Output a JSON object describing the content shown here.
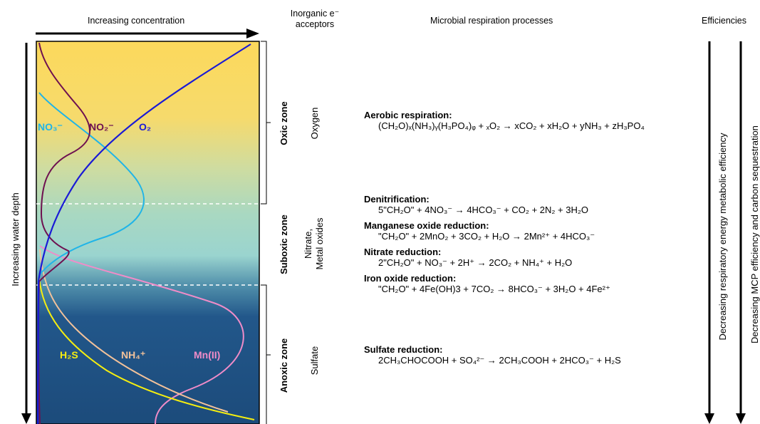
{
  "headers": {
    "concentration": "Increasing concentration",
    "acceptors": "Inorganic e⁻ acceptors",
    "processes": "Microbial respiration processes",
    "efficiencies": "Efficiencies"
  },
  "axis": {
    "depth": "Increasing water depth"
  },
  "zones": [
    {
      "name": "Oxic zone",
      "acceptor": "Oxygen"
    },
    {
      "name": "Suboxic zone",
      "acceptor": "Nitrate,\nMetal oxides"
    },
    {
      "name": "Anoxic zone",
      "acceptor": "Sulfate"
    }
  ],
  "species": {
    "no3": "NO₃⁻",
    "no2": "NO₂⁻",
    "o2": "O₂",
    "h2s": "H₂S",
    "nh4": "NH₄⁺",
    "mn": "Mn(II)"
  },
  "processes": [
    {
      "title": "Aerobic respiration:",
      "equation": "(CH₂O)ₓ(NH₃)ᵧ(H₃PO₄)ᵩ + ₓO₂ → xCO₂ + xH₂O + yNH₃ + zH₃PO₄"
    },
    {
      "title": "Denitrification:",
      "equation": "5\"CH₂O\" + 4NO₃⁻ → 4HCO₃⁻ + CO₂ + 2N₂ + 3H₂O"
    },
    {
      "title": "Manganese oxide reduction:",
      "equation": "\"CH₂O\" + 2MnO₂ + 3CO₂ + H₂O → 2Mn²⁺ + 4HCO₃⁻"
    },
    {
      "title": "Nitrate reduction:",
      "equation": "2\"CH₂O\" + NO₃⁻ + 2H⁺ → 2CO₂ + NH₄⁺ + H₂O"
    },
    {
      "title": "Iron oxide reduction:",
      "equation": "\"CH₂O\" + 4Fe(OH)3 + 7CO₂ → 8HCO₃⁻ + 3H₂O + 4Fe²⁺"
    },
    {
      "title": "Sulfate reduction:",
      "equation": "2CH₃CHOCOOH + SO₄²⁻ → 2CH₃COOH + 2HCO₃⁻ + H₂S"
    }
  ],
  "efficiencies": {
    "energy": "Decreasing respiratory energy metabolic efficiency",
    "mcp": "Decreasing MCP efficiency and carbon sequestration"
  },
  "colors": {
    "o2": "#1a1ad6",
    "no3": "#1fb4e8",
    "no2": "#6e1050",
    "h2s": "#f5ee10",
    "nh4": "#f3c29a",
    "mn": "#f08cc8",
    "oxic_top": "#fcd95c",
    "suboxic": "#9fd7cf",
    "anoxic": "#1c4d7d"
  }
}
